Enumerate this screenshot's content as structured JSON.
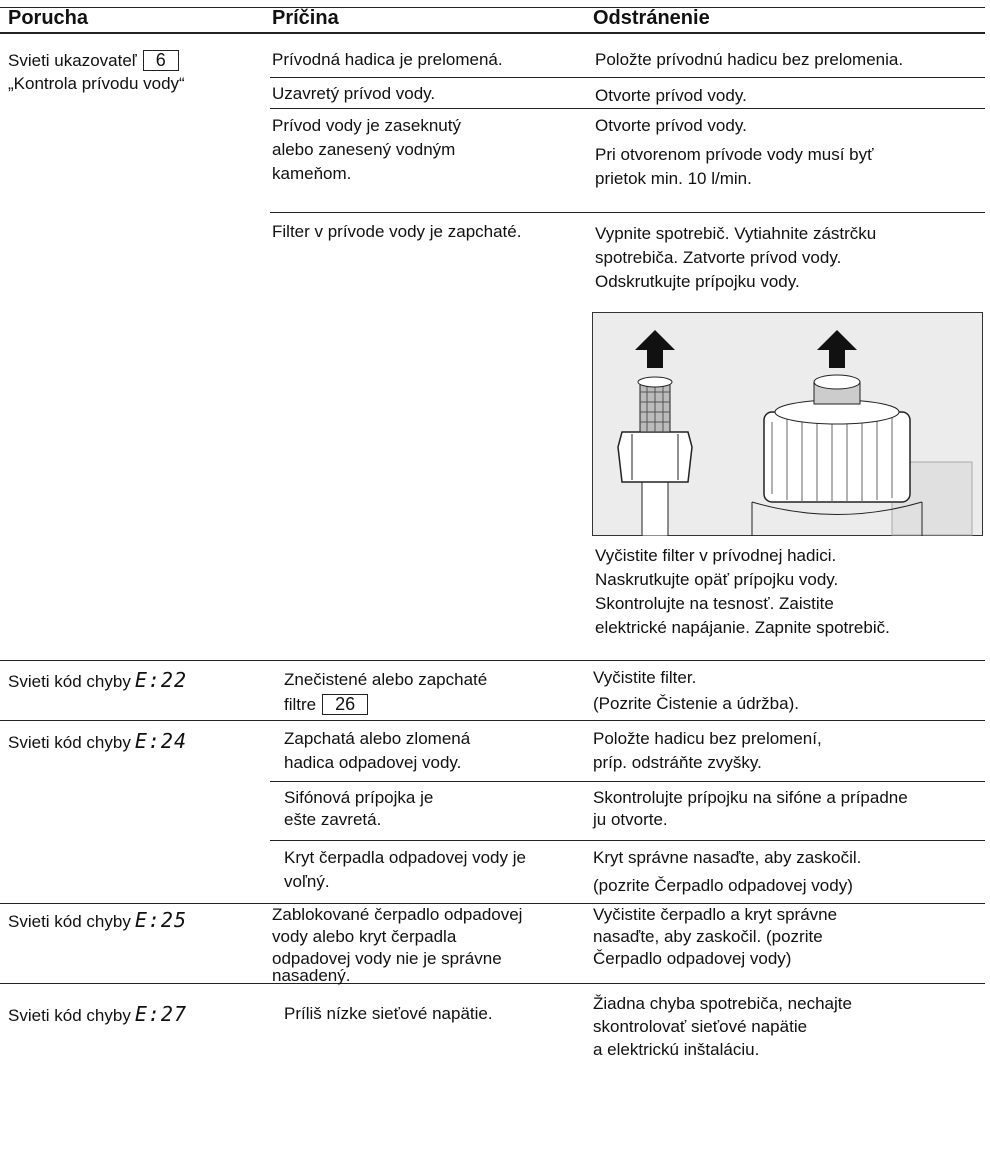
{
  "header": {
    "columns": [
      "Porucha",
      "Príčina",
      "Odstránenie"
    ]
  },
  "groups": [
    {
      "fault": {
        "label": "Svieti ukazovateľ",
        "ref": "6",
        "line2": "„Kontrola prívodu vody“"
      },
      "causes": [
        {
          "cause": [
            "Prívodná hadica je prelomená."
          ],
          "remedy": [
            "Položte prívodnú hadicu bez prelomenia."
          ]
        },
        {
          "cause": [
            "Uzavretý prívod vody."
          ],
          "remedy": [
            "Otvorte prívod vody."
          ]
        },
        {
          "cause": [
            "Prívod vody je zaseknutý",
            "alebo zanesený vodným",
            "kameňom."
          ],
          "remedy": [
            "Otvorte prívod vody.",
            "Pri otvorenom prívode vody musí byť",
            "prietok min. 10 l/min."
          ]
        },
        {
          "cause": [
            "Filter v prívode vody je zapchaté."
          ],
          "remedy": [
            "Vypnite spotrebič. Vytiahnite zástrčku",
            "spotrebiča. Zatvorte prívod vody.",
            "Odskrutkujte prípojku vody."
          ],
          "remedy_after": [
            "Vyčistite filter v prívodnej hadici.",
            "Naskrutkujte opäť prípojku vody.",
            "Skontrolujte na tesnosť. Zaistite",
            "elektrické napájanie. Zapnite spotrebič."
          ]
        }
      ]
    },
    {
      "fault": {
        "label": "Svieti kód chyby",
        "code": "E:22"
      },
      "causes": [
        {
          "cause": [
            "Znečistené alebo zapchaté",
            "filtre"
          ],
          "cause_ref": "26",
          "remedy": [
            "Vyčistite filter.",
            "(Pozrite Čistenie a údržba)."
          ]
        }
      ]
    },
    {
      "fault": {
        "label": "Svieti kód chyby",
        "code": "E:24"
      },
      "causes": [
        {
          "cause": [
            "Zapchatá alebo zlomená",
            "hadica odpadovej vody."
          ],
          "remedy": [
            "Položte hadicu bez prelomení,",
            "príp. odstráňte zvyšky."
          ]
        },
        {
          "cause": [
            "Sifónová prípojka je",
            "ešte zavretá."
          ],
          "remedy": [
            "Skontrolujte prípojku na sifóne a prípadne",
            "ju otvorte."
          ]
        },
        {
          "cause": [
            "Kryt čerpadla odpadovej vody je",
            "voľný."
          ],
          "remedy": [
            "Kryt správne nasaďte, aby zaskočil.",
            "(pozrite Čerpadlo odpadovej vody)"
          ]
        }
      ]
    },
    {
      "fault": {
        "label": "Svieti kód chyby",
        "code": "E:25"
      },
      "causes": [
        {
          "cause": [
            "Zablokované čerpadlo odpadovej",
            "vody alebo kryt čerpadla",
            "odpadovej vody nie je správne",
            "nasadený."
          ],
          "remedy": [
            "Vyčistite čerpadlo a kryt správne",
            "nasaďte, aby zaskočil. (pozrite",
            "Čerpadlo odpadovej vody)"
          ]
        }
      ]
    },
    {
      "fault": {
        "label": "Svieti kód chyby",
        "code": "E:27"
      },
      "causes": [
        {
          "cause": [
            "Príliš nízke sieťové napätie."
          ],
          "remedy": [
            "Žiadna chyba spotrebiča, nechajte",
            "skontrolovať sieťové napätie",
            "a elektrickú inštaláciu."
          ]
        }
      ]
    }
  ]
}
